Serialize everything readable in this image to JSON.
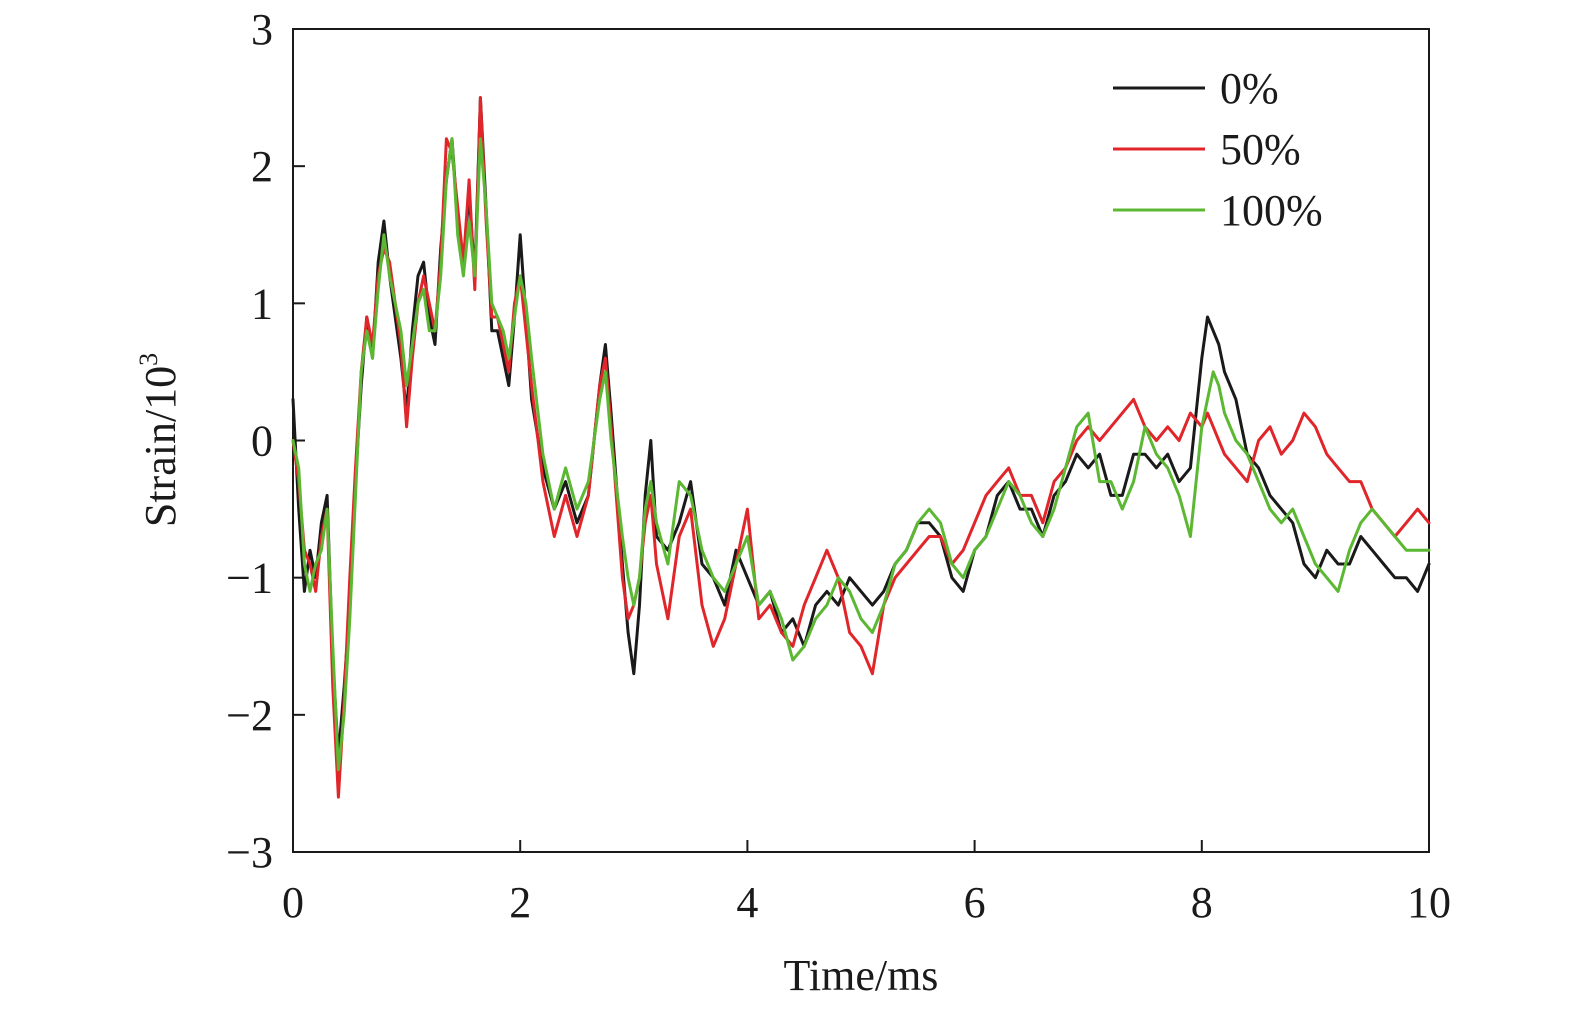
{
  "chart_data": {
    "type": "line",
    "title": "",
    "xlabel": "Time/ms",
    "ylabel": "Strain/10",
    "ylabel_superscript": "3",
    "xlim": [
      0,
      10
    ],
    "ylim": [
      -3,
      3
    ],
    "x_ticks": [
      0,
      2,
      4,
      6,
      8,
      10
    ],
    "x_tick_labels": [
      "0",
      "2",
      "4",
      "6",
      "8",
      "10"
    ],
    "y_ticks": [
      -3,
      -2,
      -1,
      0,
      1,
      2,
      3
    ],
    "y_tick_labels": [
      "−3",
      "−2",
      "−1",
      "0",
      "1",
      "2",
      "3"
    ],
    "grid": false,
    "legend_position": "top-right",
    "series": [
      {
        "name": "0%",
        "color": "#1a1a1a",
        "x": [
          0,
          0.05,
          0.1,
          0.15,
          0.2,
          0.25,
          0.3,
          0.35,
          0.4,
          0.45,
          0.5,
          0.55,
          0.6,
          0.65,
          0.7,
          0.75,
          0.8,
          0.85,
          0.9,
          0.95,
          1.0,
          1.05,
          1.1,
          1.15,
          1.2,
          1.25,
          1.3,
          1.35,
          1.4,
          1.45,
          1.5,
          1.55,
          1.6,
          1.65,
          1.7,
          1.75,
          1.8,
          1.85,
          1.9,
          1.95,
          2.0,
          2.05,
          2.1,
          2.2,
          2.3,
          2.4,
          2.5,
          2.6,
          2.7,
          2.75,
          2.8,
          2.9,
          2.95,
          3.0,
          3.05,
          3.1,
          3.15,
          3.2,
          3.3,
          3.4,
          3.5,
          3.6,
          3.7,
          3.8,
          3.9,
          4.0,
          4.1,
          4.2,
          4.3,
          4.4,
          4.5,
          4.6,
          4.7,
          4.8,
          4.9,
          5.0,
          5.1,
          5.2,
          5.3,
          5.4,
          5.5,
          5.6,
          5.7,
          5.8,
          5.9,
          6.0,
          6.1,
          6.2,
          6.3,
          6.4,
          6.5,
          6.6,
          6.7,
          6.8,
          6.9,
          7.0,
          7.1,
          7.2,
          7.3,
          7.4,
          7.5,
          7.6,
          7.7,
          7.8,
          7.9,
          8.0,
          8.05,
          8.1,
          8.15,
          8.2,
          8.3,
          8.4,
          8.5,
          8.6,
          8.7,
          8.8,
          8.9,
          9.0,
          9.1,
          9.2,
          9.3,
          9.4,
          9.5,
          9.6,
          9.7,
          9.8,
          9.9,
          10.0
        ],
        "y": [
          0.3,
          -0.5,
          -1.1,
          -0.8,
          -1.0,
          -0.6,
          -0.4,
          -1.6,
          -2.3,
          -1.8,
          -1.2,
          -0.3,
          0.4,
          0.9,
          0.6,
          1.3,
          1.6,
          1.2,
          0.9,
          0.6,
          0.2,
          0.8,
          1.2,
          1.3,
          0.9,
          0.7,
          1.4,
          1.9,
          2.2,
          1.6,
          1.3,
          1.8,
          1.2,
          2.5,
          1.7,
          0.8,
          0.8,
          0.6,
          0.4,
          0.9,
          1.5,
          0.9,
          0.3,
          -0.2,
          -0.5,
          -0.3,
          -0.6,
          -0.4,
          0.4,
          0.7,
          0.2,
          -0.9,
          -1.4,
          -1.7,
          -1.2,
          -0.4,
          0.0,
          -0.7,
          -0.8,
          -0.6,
          -0.3,
          -0.9,
          -1.0,
          -1.2,
          -0.8,
          -1.0,
          -1.2,
          -1.1,
          -1.4,
          -1.3,
          -1.5,
          -1.2,
          -1.1,
          -1.2,
          -1.0,
          -1.1,
          -1.2,
          -1.1,
          -0.9,
          -0.8,
          -0.6,
          -0.6,
          -0.7,
          -1.0,
          -1.1,
          -0.8,
          -0.7,
          -0.4,
          -0.3,
          -0.5,
          -0.5,
          -0.7,
          -0.4,
          -0.3,
          -0.1,
          -0.2,
          -0.1,
          -0.4,
          -0.4,
          -0.1,
          -0.1,
          -0.2,
          -0.1,
          -0.3,
          -0.2,
          0.6,
          0.9,
          0.8,
          0.7,
          0.5,
          0.3,
          -0.1,
          -0.2,
          -0.4,
          -0.5,
          -0.6,
          -0.9,
          -1.0,
          -0.8,
          -0.9,
          -0.9,
          -0.7,
          -0.8,
          -0.9,
          -1.0,
          -1.0,
          -1.1,
          -0.9
        ]
      },
      {
        "name": "50%",
        "color": "#e0262a",
        "x": [
          0,
          0.05,
          0.1,
          0.15,
          0.2,
          0.25,
          0.3,
          0.35,
          0.4,
          0.45,
          0.5,
          0.55,
          0.6,
          0.65,
          0.7,
          0.75,
          0.8,
          0.85,
          0.9,
          0.95,
          1.0,
          1.05,
          1.1,
          1.15,
          1.2,
          1.25,
          1.3,
          1.35,
          1.4,
          1.45,
          1.5,
          1.55,
          1.6,
          1.65,
          1.7,
          1.75,
          1.8,
          1.85,
          1.9,
          1.95,
          2.0,
          2.05,
          2.1,
          2.2,
          2.3,
          2.4,
          2.5,
          2.6,
          2.7,
          2.75,
          2.8,
          2.9,
          2.95,
          3.0,
          3.05,
          3.1,
          3.15,
          3.2,
          3.3,
          3.4,
          3.5,
          3.6,
          3.7,
          3.8,
          3.9,
          4.0,
          4.1,
          4.2,
          4.3,
          4.4,
          4.5,
          4.6,
          4.7,
          4.8,
          4.9,
          5.0,
          5.1,
          5.2,
          5.3,
          5.4,
          5.5,
          5.6,
          5.7,
          5.8,
          5.9,
          6.0,
          6.1,
          6.2,
          6.3,
          6.4,
          6.5,
          6.6,
          6.7,
          6.8,
          6.9,
          7.0,
          7.1,
          7.2,
          7.3,
          7.4,
          7.5,
          7.6,
          7.7,
          7.8,
          7.9,
          8.0,
          8.05,
          8.1,
          8.15,
          8.2,
          8.3,
          8.4,
          8.5,
          8.6,
          8.7,
          8.8,
          8.9,
          9.0,
          9.1,
          9.2,
          9.3,
          9.4,
          9.5,
          9.6,
          9.7,
          9.8,
          9.9,
          10.0
        ],
        "y": [
          0.0,
          -0.3,
          -0.8,
          -0.9,
          -1.1,
          -0.7,
          -0.5,
          -1.8,
          -2.6,
          -1.9,
          -1.0,
          -0.2,
          0.5,
          0.9,
          0.7,
          1.2,
          1.4,
          1.3,
          1.0,
          0.7,
          0.1,
          0.6,
          1.0,
          1.2,
          1.0,
          0.8,
          1.3,
          2.2,
          2.1,
          1.7,
          1.3,
          1.9,
          1.1,
          2.5,
          1.6,
          0.9,
          0.9,
          0.7,
          0.5,
          1.0,
          1.2,
          0.8,
          0.4,
          -0.3,
          -0.7,
          -0.4,
          -0.7,
          -0.4,
          0.4,
          0.6,
          0.1,
          -1.0,
          -1.3,
          -1.2,
          -1.0,
          -0.6,
          -0.4,
          -0.9,
          -1.3,
          -0.7,
          -0.5,
          -1.2,
          -1.5,
          -1.3,
          -0.9,
          -0.5,
          -1.3,
          -1.2,
          -1.4,
          -1.5,
          -1.2,
          -1.0,
          -0.8,
          -1.0,
          -1.4,
          -1.5,
          -1.7,
          -1.2,
          -1.0,
          -0.9,
          -0.8,
          -0.7,
          -0.7,
          -0.9,
          -0.8,
          -0.6,
          -0.4,
          -0.3,
          -0.2,
          -0.4,
          -0.4,
          -0.6,
          -0.3,
          -0.2,
          0.0,
          0.1,
          0.0,
          0.1,
          0.2,
          0.3,
          0.1,
          0.0,
          0.1,
          0.0,
          0.2,
          0.1,
          0.2,
          0.1,
          0.0,
          -0.1,
          -0.2,
          -0.3,
          0.0,
          0.1,
          -0.1,
          0.0,
          0.2,
          0.1,
          -0.1,
          -0.2,
          -0.3,
          -0.3,
          -0.5,
          -0.6,
          -0.7,
          -0.6,
          -0.5,
          -0.6
        ]
      },
      {
        "name": "100%",
        "color": "#5cb833",
        "x": [
          0,
          0.05,
          0.1,
          0.15,
          0.2,
          0.25,
          0.3,
          0.35,
          0.4,
          0.45,
          0.5,
          0.55,
          0.6,
          0.65,
          0.7,
          0.75,
          0.8,
          0.85,
          0.9,
          0.95,
          1.0,
          1.05,
          1.1,
          1.15,
          1.2,
          1.25,
          1.3,
          1.35,
          1.4,
          1.45,
          1.5,
          1.55,
          1.6,
          1.65,
          1.7,
          1.75,
          1.8,
          1.85,
          1.9,
          1.95,
          2.0,
          2.05,
          2.1,
          2.2,
          2.3,
          2.4,
          2.5,
          2.6,
          2.7,
          2.75,
          2.8,
          2.9,
          2.95,
          3.0,
          3.05,
          3.1,
          3.15,
          3.2,
          3.3,
          3.4,
          3.5,
          3.6,
          3.7,
          3.8,
          3.9,
          4.0,
          4.1,
          4.2,
          4.3,
          4.4,
          4.5,
          4.6,
          4.7,
          4.8,
          4.9,
          5.0,
          5.1,
          5.2,
          5.3,
          5.4,
          5.5,
          5.6,
          5.7,
          5.8,
          5.9,
          6.0,
          6.1,
          6.2,
          6.3,
          6.4,
          6.5,
          6.6,
          6.7,
          6.8,
          6.9,
          7.0,
          7.1,
          7.2,
          7.3,
          7.4,
          7.5,
          7.6,
          7.7,
          7.8,
          7.9,
          8.0,
          8.05,
          8.1,
          8.15,
          8.2,
          8.3,
          8.4,
          8.5,
          8.6,
          8.7,
          8.8,
          8.9,
          9.0,
          9.1,
          9.2,
          9.3,
          9.4,
          9.5,
          9.6,
          9.7,
          9.8,
          9.9,
          10.0
        ],
        "y": [
          0.0,
          -0.2,
          -0.9,
          -1.1,
          -0.9,
          -0.8,
          -0.5,
          -1.5,
          -2.4,
          -2.0,
          -1.3,
          -0.4,
          0.5,
          0.8,
          0.6,
          1.1,
          1.5,
          1.2,
          1.0,
          0.8,
          0.4,
          0.7,
          1.0,
          1.1,
          0.8,
          0.8,
          1.2,
          1.9,
          2.2,
          1.5,
          1.2,
          1.6,
          1.2,
          2.2,
          1.7,
          1.0,
          0.9,
          0.8,
          0.6,
          0.9,
          1.2,
          1.0,
          0.6,
          -0.1,
          -0.5,
          -0.2,
          -0.5,
          -0.3,
          0.3,
          0.5,
          0.0,
          -0.7,
          -1.0,
          -1.2,
          -1.0,
          -0.5,
          -0.3,
          -0.6,
          -0.9,
          -0.3,
          -0.4,
          -0.8,
          -1.0,
          -1.1,
          -0.9,
          -0.7,
          -1.2,
          -1.1,
          -1.3,
          -1.6,
          -1.5,
          -1.3,
          -1.2,
          -1.0,
          -1.1,
          -1.3,
          -1.4,
          -1.2,
          -0.9,
          -0.8,
          -0.6,
          -0.5,
          -0.6,
          -0.9,
          -1.0,
          -0.8,
          -0.7,
          -0.5,
          -0.3,
          -0.4,
          -0.6,
          -0.7,
          -0.5,
          -0.2,
          0.1,
          0.2,
          -0.3,
          -0.3,
          -0.5,
          -0.3,
          0.1,
          -0.1,
          -0.2,
          -0.4,
          -0.7,
          0.1,
          0.3,
          0.5,
          0.4,
          0.2,
          0.0,
          -0.1,
          -0.3,
          -0.5,
          -0.6,
          -0.5,
          -0.7,
          -0.9,
          -1.0,
          -1.1,
          -0.8,
          -0.6,
          -0.5,
          -0.6,
          -0.7,
          -0.8,
          -0.8,
          -0.8
        ]
      }
    ]
  }
}
